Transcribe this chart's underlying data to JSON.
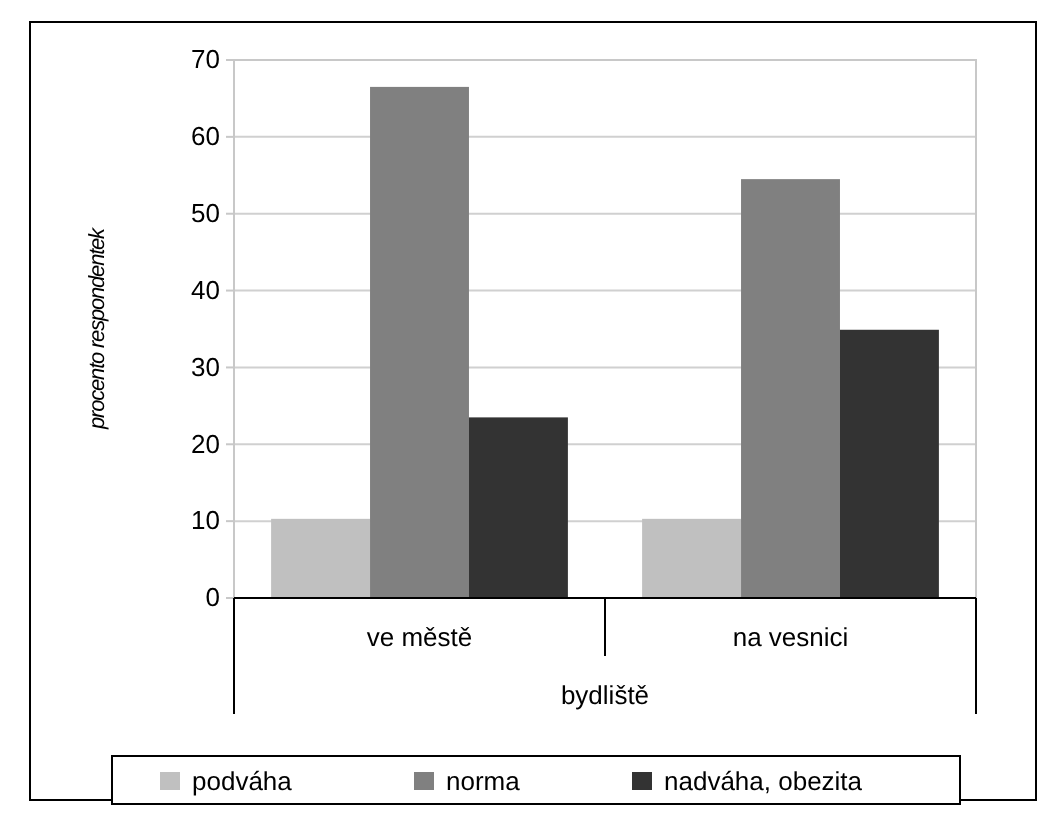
{
  "chart_data": {
    "type": "bar",
    "xlabel": "bydliště",
    "ylabel": "procento respondentek",
    "categories": [
      "ve městě",
      "na vesnici"
    ],
    "series": [
      {
        "name": "podváha",
        "color": "#c0c0c0",
        "values": [
          10.3,
          10.3
        ]
      },
      {
        "name": "norma",
        "color": "#808080",
        "values": [
          66.5,
          54.5
        ]
      },
      {
        "name": "nadváha, obezita",
        "color": "#333333",
        "values": [
          23.5,
          34.9
        ]
      }
    ],
    "ylim": [
      0,
      70
    ],
    "yticks": [
      0,
      10,
      20,
      30,
      40,
      50,
      60,
      70
    ],
    "grid": "y",
    "legend": "bottom"
  }
}
